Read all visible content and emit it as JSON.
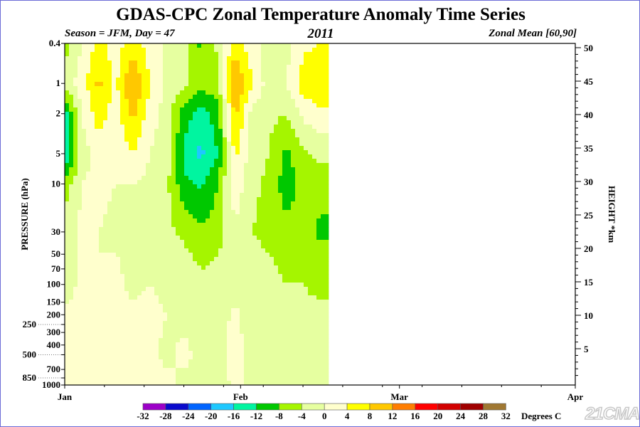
{
  "chart_data": {
    "type": "heatmap",
    "title": "GDAS-CPC Zonal Temperature Anomaly Time Series",
    "subtitle_left": "Season = JFM, Day =  47",
    "subtitle_center": "2011",
    "subtitle_right": "Zonal Mean [60,90]",
    "ylabel": "PRESSURE (hPa)",
    "ylabel_right": "HEIGHT *km",
    "colorbar_label": "Degrees C",
    "y_scale": "log",
    "ylim": [
      1000,
      0.4
    ],
    "xlim_days": [
      1,
      91
    ],
    "x_ticks": [
      {
        "label": "Jan",
        "day": 1
      },
      {
        "label": "Feb",
        "day": 32
      },
      {
        "label": "Mar",
        "day": 60
      },
      {
        "label": "Apr",
        "day": 91
      }
    ],
    "y_ticks": [
      "0.4",
      "1",
      "2",
      "5",
      "10",
      "30",
      "50",
      "70",
      "100",
      "150",
      "200",
      "250",
      "300",
      "400",
      "500",
      "700",
      "850",
      "1000"
    ],
    "y_right_ticks": [
      "5",
      "10",
      "15",
      "20",
      "25",
      "30",
      "35",
      "40",
      "45",
      "50"
    ],
    "levels": [
      -32,
      -28,
      -24,
      -20,
      -16,
      -12,
      -8,
      -4,
      0,
      4,
      8,
      12,
      16,
      20,
      24,
      28,
      32
    ],
    "level_colors": [
      "#9c00c8",
      "#0a0acd",
      "#0064ff",
      "#1ec8ff",
      "#00f5a0",
      "#00c800",
      "#a5f500",
      "#e6ffa0",
      "#ffffcd",
      "#ffff00",
      "#ffc800",
      "#ff7d00",
      "#ff0000",
      "#d20000",
      "#a00000",
      "#a07832"
    ],
    "days": [
      1,
      4,
      7,
      10,
      13,
      16,
      19,
      22,
      25,
      28,
      31,
      34,
      37,
      40,
      43,
      46
    ],
    "pressures": [
      0.4,
      1,
      2,
      5,
      10,
      30,
      50,
      100,
      200,
      500,
      1000
    ],
    "values": [
      [
        -6,
        -2,
        -14,
        -18,
        -6,
        -2,
        -2,
        -2,
        1,
        1,
        1
      ],
      [
        0,
        2,
        0,
        -2,
        0,
        1,
        1,
        1,
        1,
        1,
        1
      ],
      [
        5,
        9,
        6,
        2,
        1,
        0,
        0,
        1,
        1,
        1,
        1
      ],
      [
        2,
        3,
        2,
        1,
        0,
        -1,
        0,
        1,
        1,
        1,
        1
      ],
      [
        6,
        13,
        9,
        4,
        0,
        -1,
        -1,
        -1,
        1,
        1,
        1
      ],
      [
        2,
        4,
        2,
        0,
        -1,
        -2,
        -1,
        0,
        1,
        1,
        1
      ],
      [
        -1,
        -1,
        -2,
        -2,
        -3,
        -3,
        -2,
        -1,
        0,
        -1,
        1
      ],
      [
        -2,
        -3,
        -10,
        -13,
        -11,
        -5,
        -3,
        -2,
        -1,
        1,
        -1
      ],
      [
        -9,
        -6,
        -14,
        -17,
        -13,
        -7,
        -5,
        -3,
        -2,
        -1,
        -1
      ],
      [
        -3,
        -5,
        -10,
        -12,
        -8,
        -6,
        -4,
        -3,
        -2,
        -1,
        -2
      ],
      [
        6,
        13,
        9,
        5,
        3,
        -1,
        -2,
        -2,
        1,
        1,
        1
      ],
      [
        2,
        4,
        -1,
        -2,
        -3,
        -4,
        -3,
        -1,
        -2,
        -1,
        -1
      ],
      [
        -3,
        -2,
        -3,
        -4,
        -5,
        -5,
        -4,
        -3,
        -2,
        -1,
        -1
      ],
      [
        -2,
        0,
        -4,
        -9,
        -10,
        -7,
        -5,
        -4,
        -3,
        -2,
        -1
      ],
      [
        3,
        6,
        1,
        -5,
        -7,
        -6,
        -5,
        -4,
        -3,
        -2,
        -1
      ],
      [
        4,
        8,
        3,
        -3,
        -6,
        -9,
        -6,
        -5,
        -3,
        -2,
        -1
      ]
    ]
  },
  "watermark": "21CMA"
}
